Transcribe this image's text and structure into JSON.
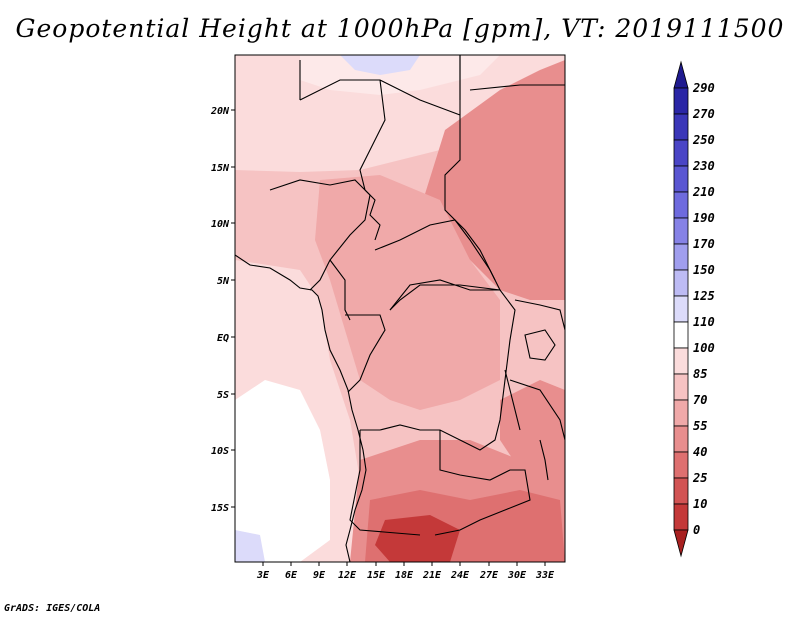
{
  "title": "Geopotential Height at 1000hPa [gpm], VT: 2019111500",
  "credit": "GrADS: IGES/COLA",
  "axes": {
    "lon_ticks": [
      "3E",
      "6E",
      "9E",
      "12E",
      "15E",
      "18E",
      "21E",
      "24E",
      "27E",
      "30E",
      "33E"
    ],
    "lat_ticks": [
      "20N",
      "15N",
      "10N",
      "5N",
      "EQ",
      "5S",
      "10S",
      "15S"
    ]
  },
  "colorbar": {
    "labels": [
      "290",
      "270",
      "250",
      "230",
      "210",
      "190",
      "170",
      "150",
      "125",
      "110",
      "100",
      "85",
      "70",
      "55",
      "40",
      "25",
      "10",
      "0"
    ],
    "colors": [
      "#1f1a8f",
      "#2a26a6",
      "#3a36b8",
      "#4a45c6",
      "#5a56d2",
      "#6e6ade",
      "#8682e6",
      "#a09eee",
      "#bdbbf4",
      "#dcdbfa",
      "#ffffff",
      "#fbdcdc",
      "#f6c3c3",
      "#f0a9a9",
      "#e88e8e",
      "#de7070",
      "#d25454",
      "#c43939",
      "#a82020"
    ]
  },
  "map": {
    "lon_range": [
      0,
      35
    ],
    "lat_range": [
      -19.5,
      24.5
    ]
  }
}
